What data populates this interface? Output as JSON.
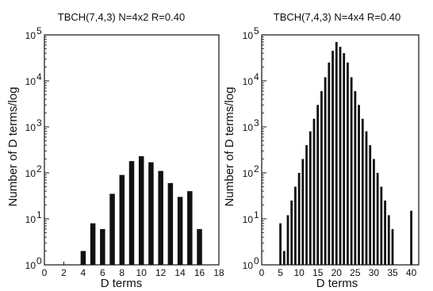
{
  "chart_data": [
    {
      "type": "bar",
      "title": "TBCH(7,4,3) N=4x2 R=0.40",
      "xlabel": "D terms",
      "ylabel": "Number of D terms/log",
      "yscale": "log",
      "ylim": [
        1,
        100000
      ],
      "xlim": [
        0,
        18
      ],
      "xticks": [
        0,
        2,
        4,
        6,
        8,
        10,
        12,
        14,
        16,
        18
      ],
      "yticks": [
        1,
        10,
        100,
        1000,
        10000,
        100000
      ],
      "ytick_labels": [
        {
          "base": "10",
          "exp": "0"
        },
        {
          "base": "10",
          "exp": "1"
        },
        {
          "base": "10",
          "exp": "2"
        },
        {
          "base": "10",
          "exp": "3"
        },
        {
          "base": "10",
          "exp": "4"
        },
        {
          "base": "10",
          "exp": "5"
        }
      ],
      "grid": false,
      "x": [
        4,
        5,
        6,
        7,
        8,
        9,
        10,
        11,
        12,
        13,
        14,
        15,
        16
      ],
      "values": [
        2,
        8,
        6,
        35,
        90,
        180,
        230,
        170,
        110,
        60,
        30,
        40,
        6
      ],
      "bar_color": "#111111"
    },
    {
      "type": "bar",
      "title": "TBCH(7,4,3) N=4x4 R=0.40",
      "xlabel": "D terms",
      "ylabel": "Number of D terms/log",
      "yscale": "log",
      "ylim": [
        1,
        100000
      ],
      "xlim": [
        0,
        42
      ],
      "xticks": [
        0,
        5,
        10,
        15,
        20,
        25,
        30,
        35,
        40
      ],
      "yticks": [
        1,
        10,
        100,
        1000,
        10000,
        100000
      ],
      "ytick_labels": [
        {
          "base": "10",
          "exp": "0"
        },
        {
          "base": "10",
          "exp": "1"
        },
        {
          "base": "10",
          "exp": "2"
        },
        {
          "base": "10",
          "exp": "3"
        },
        {
          "base": "10",
          "exp": "4"
        },
        {
          "base": "10",
          "exp": "5"
        }
      ],
      "grid": false,
      "x": [
        5,
        6,
        7,
        8,
        9,
        10,
        11,
        12,
        13,
        14,
        15,
        16,
        17,
        18,
        19,
        20,
        21,
        22,
        23,
        24,
        25,
        26,
        27,
        28,
        29,
        30,
        31,
        32,
        33,
        34,
        35,
        40
      ],
      "values": [
        8,
        2,
        12,
        25,
        50,
        100,
        200,
        400,
        800,
        1500,
        3000,
        6000,
        12000,
        25000,
        45000,
        70000,
        55000,
        40000,
        25000,
        12000,
        6000,
        3000,
        1500,
        800,
        400,
        200,
        100,
        50,
        25,
        12,
        6,
        15
      ],
      "bar_color": "#111111"
    }
  ]
}
